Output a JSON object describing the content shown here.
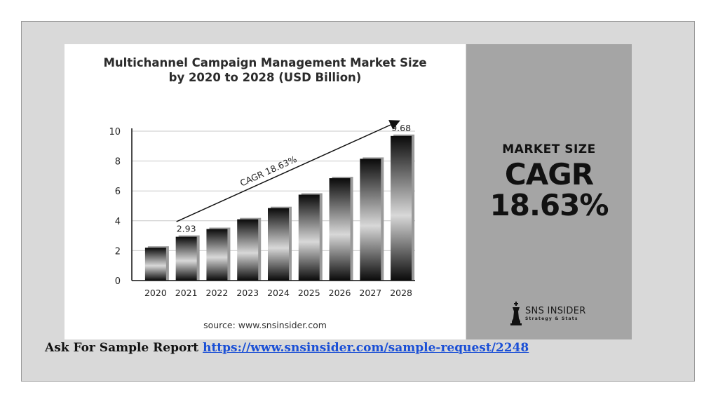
{
  "chart_data": {
    "type": "bar",
    "title": [
      "Multichannel Campaign Management Market Size",
      "by 2020 to 2028 (USD Billion)"
    ],
    "categories": [
      "2020",
      "2021",
      "2022",
      "2023",
      "2024",
      "2025",
      "2026",
      "2027",
      "2028"
    ],
    "values": [
      2.2,
      2.93,
      3.45,
      4.1,
      4.85,
      5.75,
      6.85,
      8.15,
      9.68
    ],
    "data_labels": [
      {
        "index": 1,
        "text": "2.93"
      },
      {
        "index": 8,
        "text": "9.68"
      }
    ],
    "yticks": [
      "0",
      "2",
      "4",
      "6",
      "8",
      "10"
    ],
    "ylim": [
      0,
      10
    ],
    "grid": true,
    "annotation": "CAGR 18.63%",
    "source": "source: www.snsinsider.com"
  },
  "side": {
    "market_label": "MARKET SIZE",
    "cagr_label": "CAGR",
    "cagr_value": "18.63%",
    "logo_name": "SNS INSIDER",
    "logo_tagline": "Strategy & Stats"
  },
  "footer": {
    "label": "Ask For Sample Report",
    "link": "https://www.snsinsider.com/sample-request/2248"
  }
}
